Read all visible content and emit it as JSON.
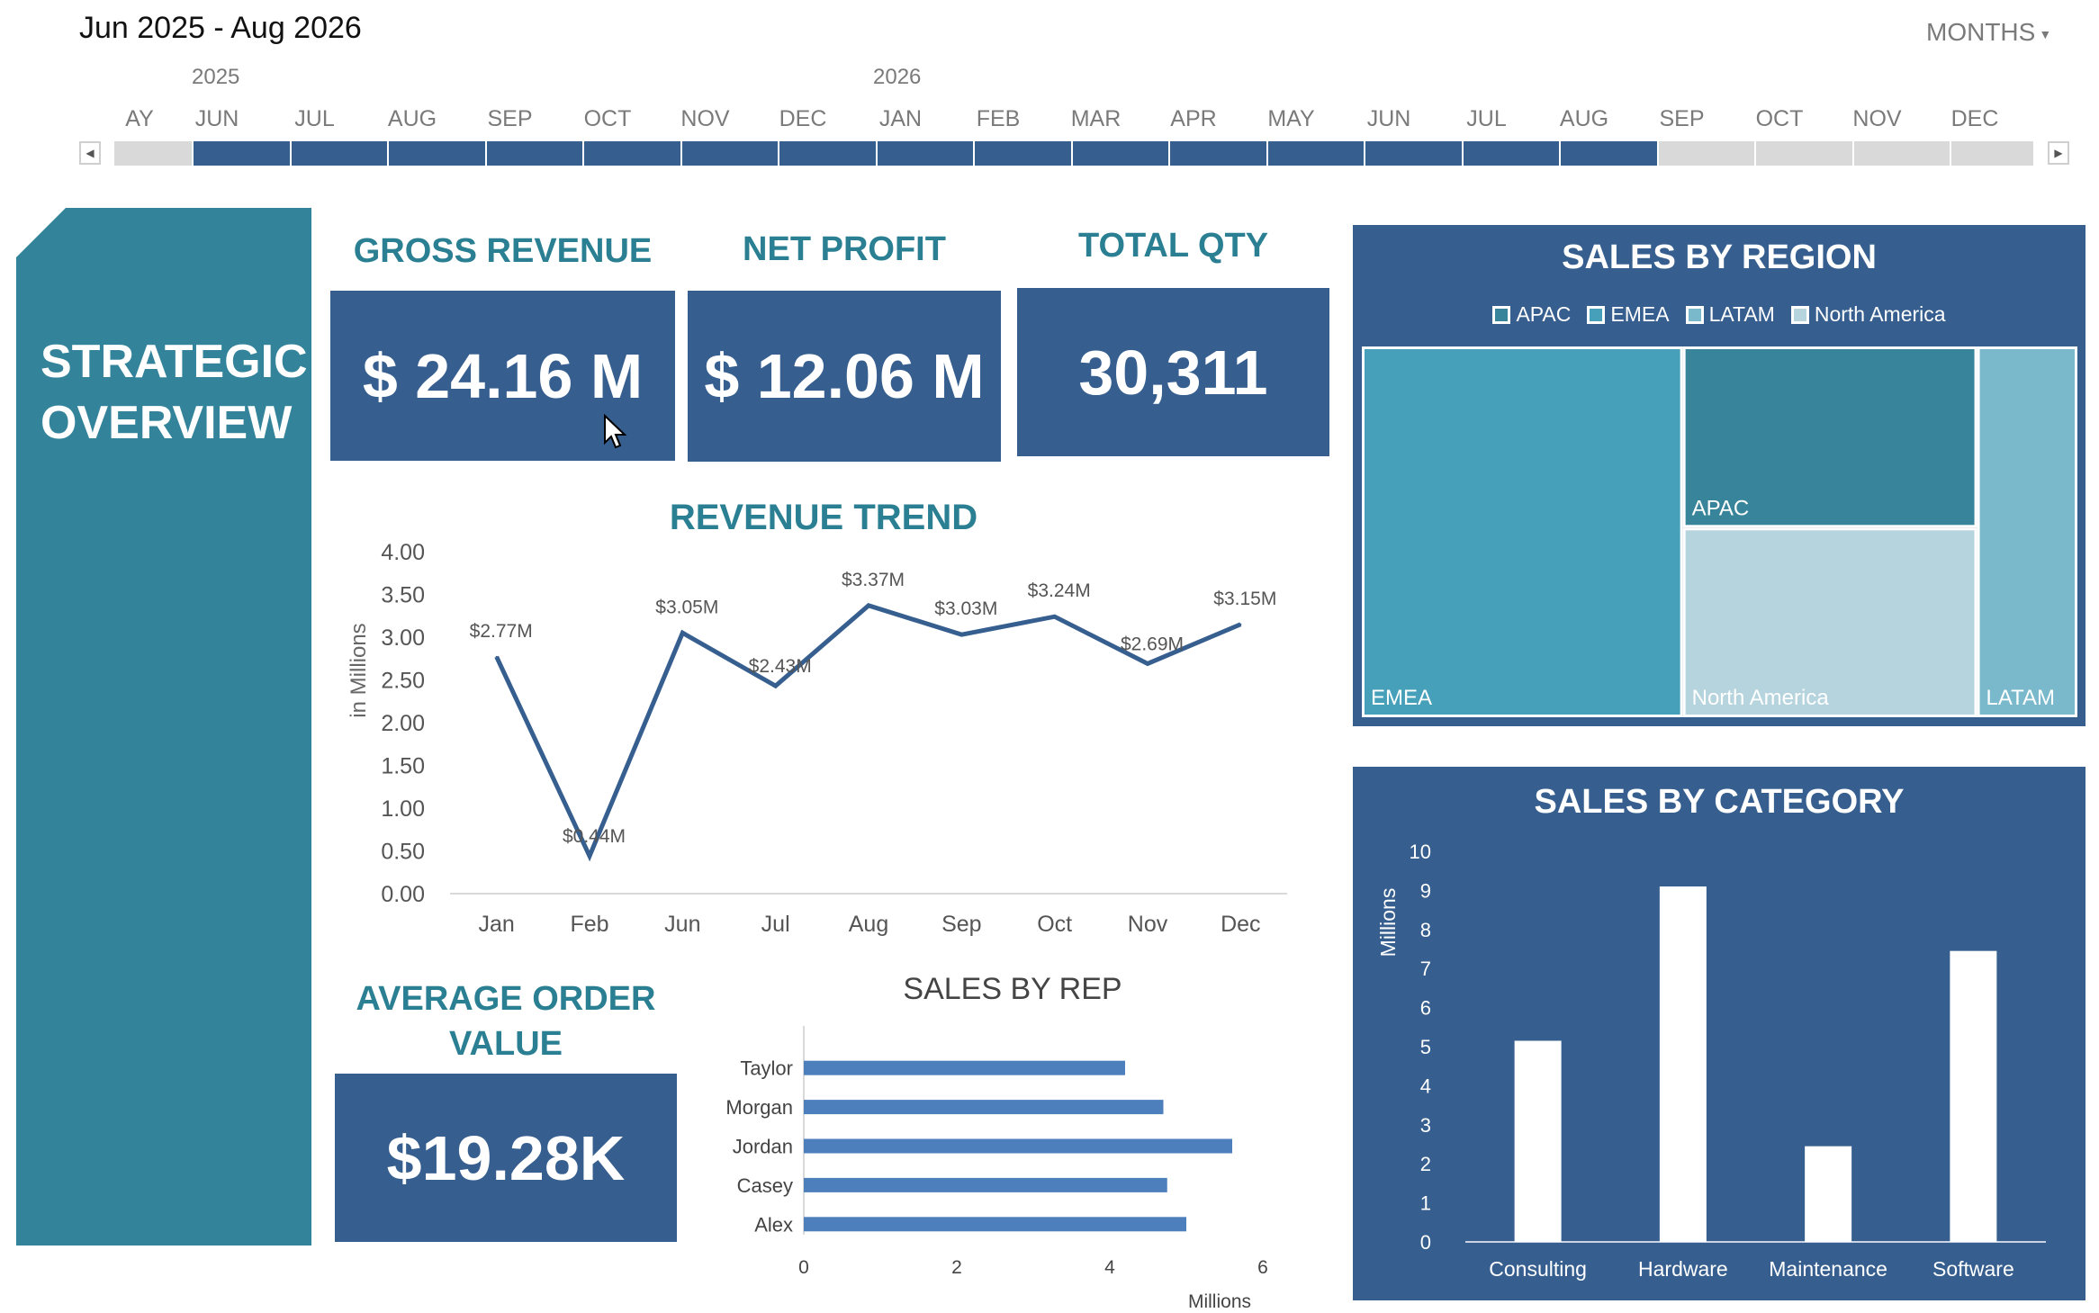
{
  "header": {
    "date_range": "Jun 2025 - Aug 2026",
    "period_selector": "MONTHS"
  },
  "timeline": {
    "years": [
      "2025",
      "2026"
    ],
    "months": [
      "AY",
      "JUN",
      "JUL",
      "AUG",
      "SEP",
      "OCT",
      "NOV",
      "DEC",
      "JAN",
      "FEB",
      "MAR",
      "APR",
      "MAY",
      "JUN",
      "JUL",
      "AUG",
      "SEP",
      "OCT",
      "NOV",
      "DEC"
    ],
    "selected_from_index": 1,
    "selected_to_index": 15,
    "colors": {
      "selected": "#365f8f",
      "unselected": "#d9d9d9"
    }
  },
  "left_panel": {
    "line1": "STRATEGIC",
    "line2": "OVERVIEW"
  },
  "kpis": {
    "gross_revenue": {
      "label": "GROSS REVENUE",
      "value": "$ 24.16 M"
    },
    "net_profit": {
      "label": "NET PROFIT",
      "value": "$ 12.06 M"
    },
    "total_qty": {
      "label": "TOTAL QTY",
      "value": "30,311"
    },
    "avg_order_value": {
      "label_line1": "AVERAGE ORDER",
      "label_line2": "VALUE",
      "value": "$19.28K"
    }
  },
  "colors": {
    "card": "#365f8f",
    "teal_title": "#2a7f93",
    "left_panel": "#33849b",
    "line": "#365f8f",
    "rep_bar": "#4e7fbd"
  },
  "chart_data": [
    {
      "id": "revenue_trend",
      "type": "line",
      "title": "REVENUE TREND",
      "xlabel": "",
      "ylabel": "in Millions",
      "categories": [
        "Jan",
        "Feb",
        "Jun",
        "Jul",
        "Aug",
        "Sep",
        "Oct",
        "Nov",
        "Dec"
      ],
      "values": [
        2.77,
        0.44,
        3.05,
        2.43,
        3.37,
        3.03,
        3.24,
        2.69,
        3.15
      ],
      "data_labels": [
        "$2.77M",
        "$0.44M",
        "$3.05M",
        "$2.43M",
        "$3.37M",
        "$3.03M",
        "$3.24M",
        "$2.69M",
        "$3.15M"
      ],
      "ylim": [
        0,
        4
      ],
      "yticks": [
        "0.00",
        "0.50",
        "1.00",
        "1.50",
        "2.00",
        "2.50",
        "3.00",
        "3.50",
        "4.00"
      ],
      "grid": false
    },
    {
      "id": "sales_by_rep",
      "type": "bar",
      "orientation": "horizontal",
      "title": "SALES BY REP",
      "xlabel": "Millions",
      "categories": [
        "Taylor",
        "Morgan",
        "Jordan",
        "Casey",
        "Alex"
      ],
      "values": [
        4.2,
        4.7,
        5.6,
        4.75,
        5.0
      ],
      "xlim": [
        0,
        6
      ],
      "xticks": [
        "0",
        "2",
        "4",
        "6"
      ],
      "grid": false
    },
    {
      "id": "sales_by_region",
      "type": "treemap",
      "title": "SALES BY REGION",
      "legend": [
        "APAC",
        "EMEA",
        "LATAM",
        "North America"
      ],
      "legend_position": "top",
      "items": [
        {
          "name": "EMEA",
          "value": 9.6,
          "color": "#46a0b9"
        },
        {
          "name": "APAC",
          "value": 4.3,
          "color": "#38849a"
        },
        {
          "name": "North America",
          "value": 4.5,
          "color": "#b6d4de"
        },
        {
          "name": "LATAM",
          "value": 3.0,
          "color": "#7ab8cc"
        }
      ]
    },
    {
      "id": "sales_by_category",
      "type": "bar",
      "title": "SALES BY CATEGORY",
      "ylabel": "Millions",
      "categories": [
        "Consulting",
        "Hardware",
        "Maintenance",
        "Software"
      ],
      "values": [
        5.15,
        9.1,
        2.45,
        7.45
      ],
      "ylim": [
        0,
        10
      ],
      "yticks": [
        "0",
        "1",
        "2",
        "3",
        "4",
        "5",
        "6",
        "7",
        "8",
        "9",
        "10"
      ],
      "grid": false
    }
  ]
}
